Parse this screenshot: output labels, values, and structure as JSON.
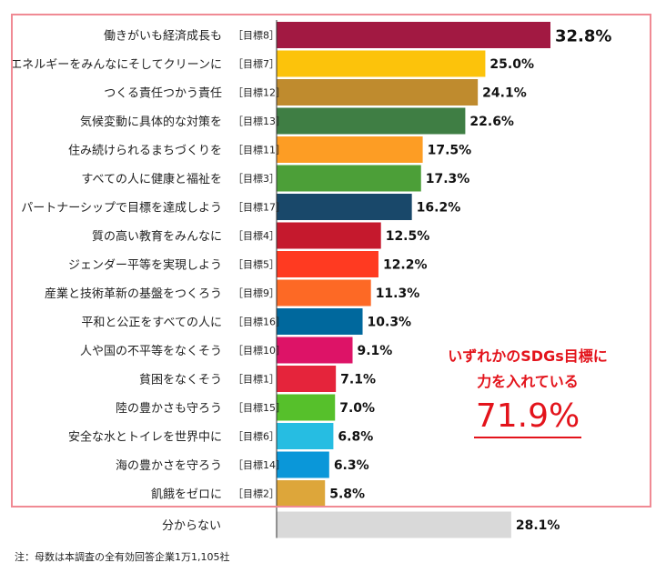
{
  "chart_data": {
    "type": "bar",
    "orientation": "horizontal",
    "xlim": [
      0,
      40
    ],
    "unit": "%",
    "categories": [
      {
        "label": "働きがいも経済成長も",
        "goal": "［目標8］",
        "value": 32.8,
        "color": "#a21942"
      },
      {
        "label": "エネルギーをみんなにそしてクリーンに",
        "goal": "［目標7］",
        "value": 25.0,
        "color": "#fcc30b"
      },
      {
        "label": "つくる責任つかう責任",
        "goal": "［目標12］",
        "value": 24.1,
        "color": "#bf8b2e"
      },
      {
        "label": "気候変動に具体的な対策を",
        "goal": "［目標13］",
        "value": 22.6,
        "color": "#3f7e44"
      },
      {
        "label": "住み続けられるまちづくりを",
        "goal": "［目標11］",
        "value": 17.5,
        "color": "#fd9d24"
      },
      {
        "label": "すべての人に健康と福祉を",
        "goal": "［目標3］",
        "value": 17.3,
        "color": "#4c9f38"
      },
      {
        "label": "パートナーシップで目標を達成しよう",
        "goal": "［目標17］",
        "value": 16.2,
        "color": "#19486a"
      },
      {
        "label": "質の高い教育をみんなに",
        "goal": "［目標4］",
        "value": 12.5,
        "color": "#c5192d"
      },
      {
        "label": "ジェンダー平等を実現しよう",
        "goal": "［目標5］",
        "value": 12.2,
        "color": "#ff3a21"
      },
      {
        "label": "産業と技術革新の基盤をつくろう",
        "goal": "［目標9］",
        "value": 11.3,
        "color": "#fd6925"
      },
      {
        "label": "平和と公正をすべての人に",
        "goal": "［目標16］",
        "value": 10.3,
        "color": "#00689d"
      },
      {
        "label": "人や国の不平等をなくそう",
        "goal": "［目標10］",
        "value": 9.1,
        "color": "#dd1367"
      },
      {
        "label": "貧困をなくそう",
        "goal": "［目標1］",
        "value": 7.1,
        "color": "#e5243b"
      },
      {
        "label": "陸の豊かさも守ろう",
        "goal": "［目標15］",
        "value": 7.0,
        "color": "#56c02b"
      },
      {
        "label": "安全な水とトイレを世界中に",
        "goal": "［目標6］",
        "value": 6.8,
        "color": "#26bde2"
      },
      {
        "label": "海の豊かさを守ろう",
        "goal": "［目標14］",
        "value": 6.3,
        "color": "#0a97d9"
      },
      {
        "label": "飢餓をゼロに",
        "goal": "［目標2］",
        "value": 5.8,
        "color": "#dda63a"
      },
      {
        "label": "分からない",
        "goal": "",
        "value": 28.1,
        "color": "#d9d9d9"
      }
    ]
  },
  "callout": {
    "line1": "いずれかのSDGs目標に",
    "line2": "力を入れている",
    "value": "71.9%"
  },
  "note": "注：母数は本調査の全有効回答企業1万1,105社",
  "colors": {
    "frame": "#f08a94",
    "callout": "#e3131b",
    "axis": "#333333"
  }
}
